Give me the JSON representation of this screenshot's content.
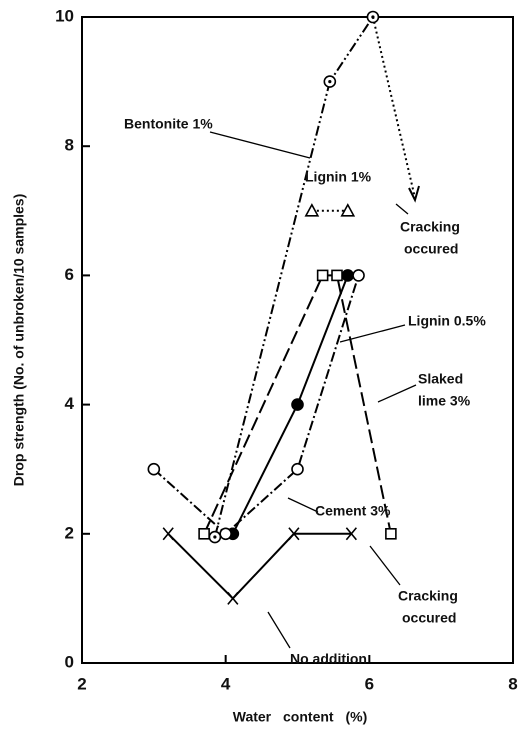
{
  "chart_data": {
    "type": "line",
    "xlabel": "Water content (%)",
    "ylabel": "Drop strength (No. of unbroken/10 samples)",
    "xlim": [
      2,
      8
    ],
    "xticks": [
      2,
      4,
      6,
      8
    ],
    "ylim": [
      0,
      10
    ],
    "yticks": [
      0,
      2,
      4,
      6,
      8,
      10
    ],
    "series": [
      {
        "name": "Bentonite 1%",
        "color": "#000",
        "marker": "circle-dot",
        "dash": "10 3 2 3 2 3",
        "x": [
          3.85,
          5.45,
          6.05
        ],
        "values": [
          1.95,
          9,
          10
        ]
      },
      {
        "name": "Lignin 1%",
        "color": "#000",
        "marker": "triangle",
        "dash": "2 3",
        "x": [
          5.2,
          5.7
        ],
        "values": [
          7,
          7
        ]
      },
      {
        "name": "Lignin 0.5%",
        "color": "#000",
        "marker": "filled-circle",
        "dash": "none",
        "x": [
          4.1,
          5,
          5.7
        ],
        "values": [
          2,
          4,
          6
        ]
      },
      {
        "name": "Slaked lime 3%",
        "color": "#000",
        "marker": "square",
        "dash": "14 5",
        "x": [
          3.7,
          5.35,
          5.55,
          6.3
        ],
        "values": [
          2,
          6,
          6,
          2
        ]
      },
      {
        "name": "Cement 3%",
        "color": "#000",
        "marker": "circle",
        "dash": "10 3 2 3",
        "x": [
          3,
          4,
          5,
          5.85
        ],
        "values": [
          3,
          2,
          3,
          6
        ]
      },
      {
        "name": "No addition",
        "color": "#000",
        "marker": "x",
        "dash": "none",
        "x": [
          3.2,
          4.1,
          4.95,
          5.75
        ],
        "values": [
          2,
          1,
          2,
          2
        ]
      }
    ],
    "annotations": [
      {
        "lines": [
          "Cracking",
          "occured"
        ]
      },
      {
        "lines": [
          "Cracking",
          "occured"
        ]
      }
    ]
  }
}
